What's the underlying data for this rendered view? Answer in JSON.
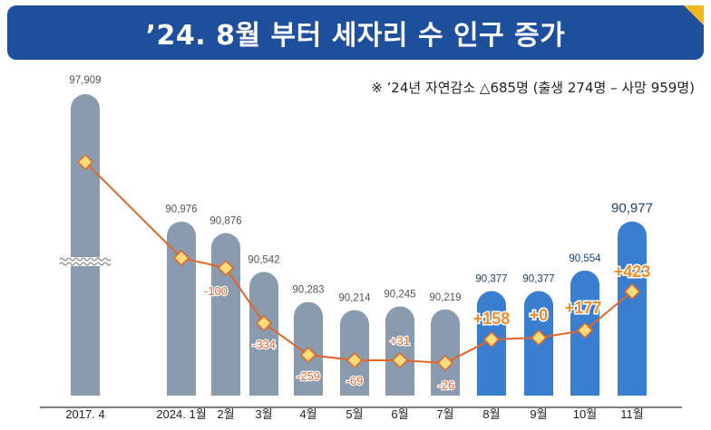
{
  "title": "’24. 8월 부터 세자리 수 인구 증가",
  "note": "※ ’24년 자연감소 △685명 (출생 274명 – 사망 959명)",
  "colors": {
    "banner": "#1e4f9c",
    "corner": "#f4b81c",
    "bar_past": "#8a9bb0",
    "bar_recent": "#3a7fcf",
    "line": "#e0662a",
    "marker_fill": "#fddc7a",
    "change_text": "#e9682a",
    "change_text_big": "#f28c2a"
  },
  "chart_data": {
    "type": "bar",
    "categories": [
      "2017. 4",
      "2024. 1월",
      "2월",
      "3월",
      "4월",
      "5월",
      "6월",
      "7월",
      "8월",
      "9월",
      "10월",
      "11월"
    ],
    "series": [
      {
        "values": [
          97909,
          90976,
          90876,
          90542,
          90283,
          90214,
          90245,
          90219,
          90377,
          90377,
          90554,
          90977
        ],
        "value_labels": [
          "97,909",
          "90,976",
          "90,876",
          "90,542",
          "90,283",
          "90,214",
          "90,245",
          "90,219",
          "90,377",
          "90,377",
          "90,554",
          "90,977"
        ]
      },
      {
        "type": "line",
        "values": [
          null,
          null,
          -100,
          -334,
          -259,
          -69,
          31,
          -26,
          158,
          0,
          177,
          423
        ],
        "value_labels": [
          "",
          "",
          "-100",
          "-334",
          "-259",
          "-69",
          "+31",
          "-26",
          "+158",
          "+0",
          "+177",
          "+423"
        ]
      }
    ],
    "highlighted_from_category": "8월",
    "axis_break": true,
    "ylim": [
      89500,
      91200
    ]
  }
}
